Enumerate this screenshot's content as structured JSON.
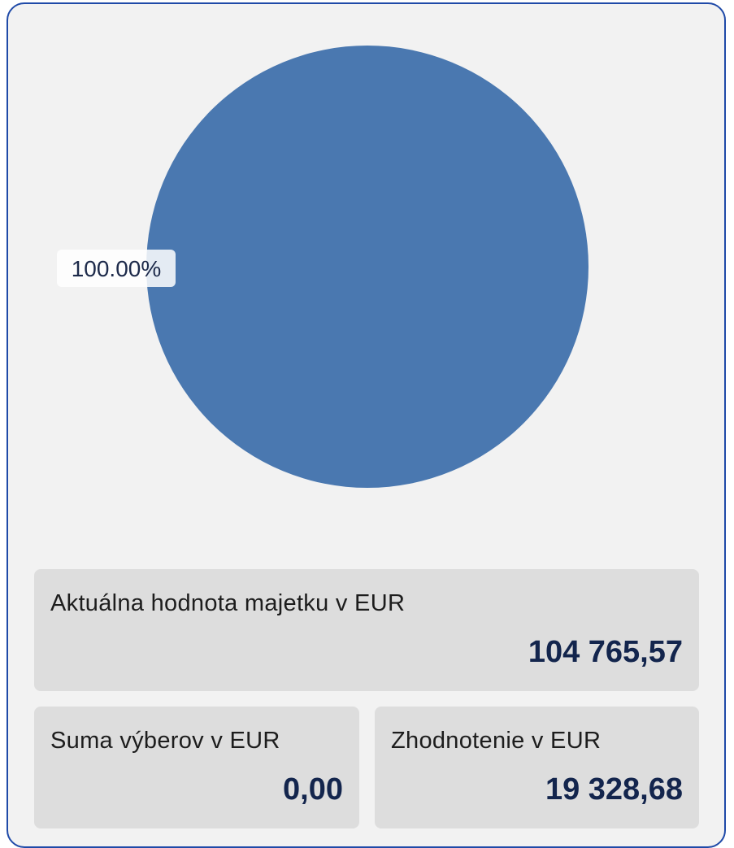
{
  "colors": {
    "card_background": "#f2f2f2",
    "card_border": "#1f4aa8",
    "pie_slice": "#4a78b0",
    "tile_background": "#dddddd",
    "value_text": "#13254d"
  },
  "chart_data": {
    "type": "pie",
    "slices": [
      {
        "value": 100.0,
        "label": "100.00%",
        "color": "#4a78b0"
      }
    ]
  },
  "stats": {
    "total_value_label": "Aktuálna hodnota majetku v EUR",
    "total_value": "104 765,57",
    "withdrawals_label": "Suma výberov v EUR",
    "withdrawals_value": "0,00",
    "appreciation_label": "Zhodnotenie v EUR",
    "appreciation_value": "19 328,68"
  }
}
